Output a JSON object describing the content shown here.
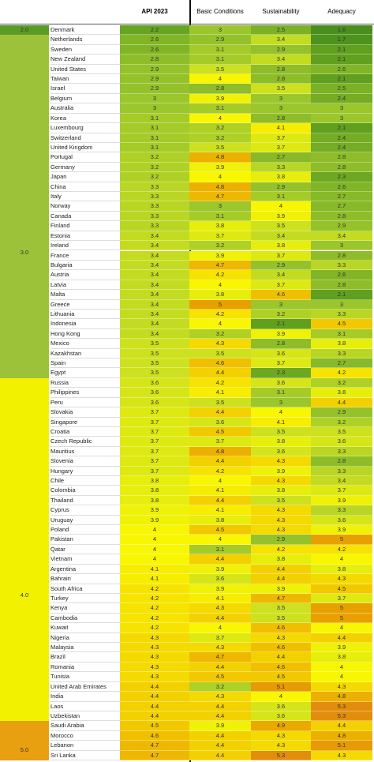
{
  "table": {
    "header": [
      "API 2023",
      "Basic Conditions",
      "Sustainability",
      "Adequacy"
    ],
    "bands": [
      "2.0",
      "3.0",
      "4.0",
      "5.0"
    ],
    "rows": [
      [
        "Denmark",
        2.2,
        3.0,
        2.5,
        1.6
      ],
      [
        "Netherlands",
        2.6,
        2.9,
        3.4,
        1.7
      ],
      [
        "Sweden",
        2.6,
        3.1,
        2.9,
        2.1
      ],
      [
        "New Zealand",
        2.8,
        3.1,
        3.4,
        2.1
      ],
      [
        "United States",
        2.9,
        3.5,
        2.8,
        2.6
      ],
      [
        "Taiwan",
        2.9,
        4.0,
        2.8,
        2.1
      ],
      [
        "Israel",
        2.9,
        2.8,
        3.5,
        2.5
      ],
      [
        "Belgium",
        3.0,
        3.9,
        3.0,
        2.4
      ],
      [
        "Australia",
        3.0,
        3.1,
        3.0,
        3.0
      ],
      [
        "Korea",
        3.1,
        4.0,
        2.8,
        3.0
      ],
      [
        "Luxembourg",
        3.1,
        3.2,
        4.1,
        2.1
      ],
      [
        "Switzerland",
        3.1,
        3.2,
        3.7,
        2.4
      ],
      [
        "United Kingdom",
        3.1,
        3.5,
        3.7,
        2.4
      ],
      [
        "Portugal",
        3.2,
        4.8,
        2.7,
        2.8
      ],
      [
        "Germany",
        3.2,
        3.9,
        3.3,
        2.8
      ],
      [
        "Japan",
        3.2,
        4.0,
        3.8,
        2.3
      ],
      [
        "China",
        3.3,
        4.8,
        2.9,
        2.6
      ],
      [
        "Italy",
        3.3,
        4.7,
        3.1,
        2.7
      ],
      [
        "Norway",
        3.3,
        3.0,
        4.0,
        2.7
      ],
      [
        "Canada",
        3.3,
        3.1,
        3.9,
        2.8
      ],
      [
        "Finland",
        3.3,
        3.8,
        3.5,
        2.9
      ],
      [
        "Estonia",
        3.4,
        3.7,
        3.4,
        3.4
      ],
      [
        "Ireland",
        3.4,
        3.2,
        3.8,
        3.0
      ],
      [
        "France",
        3.4,
        3.9,
        3.7,
        2.8
      ],
      [
        "Bulgaria",
        3.4,
        4.7,
        2.9,
        3.3
      ],
      [
        "Austria",
        3.4,
        4.2,
        3.4,
        2.6
      ],
      [
        "Latvia",
        3.4,
        4.0,
        3.7,
        2.8
      ],
      [
        "Malta",
        3.4,
        3.8,
        4.6,
        2.1
      ],
      [
        "Greece",
        3.4,
        5.0,
        3.0,
        3.0
      ],
      [
        "Lithuania",
        3.4,
        4.2,
        3.2,
        3.3
      ],
      [
        "Indonesia",
        3.4,
        4.0,
        2.1,
        4.5
      ],
      [
        "Hong Kong",
        3.4,
        3.2,
        3.9,
        3.1
      ],
      [
        "Mexico",
        3.5,
        4.3,
        2.8,
        3.8
      ],
      [
        "Kazakhstan",
        3.5,
        3.5,
        3.6,
        3.3
      ],
      [
        "Spain",
        3.5,
        4.6,
        3.7,
        2.7
      ],
      [
        "Egypt",
        3.5,
        4.4,
        2.3,
        4.2
      ],
      [
        "Russia",
        3.6,
        4.2,
        3.6,
        3.2
      ],
      [
        "Philippines",
        3.6,
        4.1,
        3.1,
        3.8
      ],
      [
        "Peru",
        3.6,
        3.5,
        3.0,
        4.4
      ],
      [
        "Slovakia",
        3.7,
        4.4,
        4.0,
        2.9
      ],
      [
        "Singapore",
        3.7,
        3.6,
        4.1,
        3.2
      ],
      [
        "Croatia",
        3.7,
        4.5,
        3.5,
        3.5
      ],
      [
        "Czech Republic",
        3.7,
        3.7,
        3.8,
        3.6
      ],
      [
        "Mauritius",
        3.7,
        4.8,
        3.6,
        3.3
      ],
      [
        "Slovenia",
        3.7,
        4.4,
        4.3,
        2.8
      ],
      [
        "Hungary",
        3.7,
        4.2,
        3.9,
        3.3
      ],
      [
        "Chile",
        3.8,
        4.0,
        4.3,
        3.4
      ],
      [
        "Colombia",
        3.8,
        4.1,
        3.8,
        3.7
      ],
      [
        "Thailand",
        3.8,
        4.4,
        3.5,
        3.9
      ],
      [
        "Cyprus",
        3.9,
        4.1,
        4.3,
        3.3
      ],
      [
        "Uruguay",
        3.9,
        3.8,
        4.3,
        3.6
      ],
      [
        "Poland",
        4.0,
        4.5,
        4.3,
        3.9
      ],
      [
        "Pakistan",
        4.0,
        4.0,
        2.9,
        5.0
      ],
      [
        "Qatar",
        4.0,
        3.1,
        4.2,
        4.2
      ],
      [
        "Vietnam",
        4.0,
        4.4,
        3.8,
        4.0
      ],
      [
        "Argentina",
        4.1,
        3.9,
        4.4,
        3.8
      ],
      [
        "Bahrain",
        4.1,
        3.6,
        4.4,
        4.3
      ],
      [
        "South Africa",
        4.2,
        3.9,
        3.9,
        4.5
      ],
      [
        "Turkey",
        4.2,
        4.1,
        4.7,
        3.7
      ],
      [
        "Kenya",
        4.2,
        4.3,
        3.5,
        5.0
      ],
      [
        "Cambodia",
        4.2,
        4.4,
        3.5,
        5.0
      ],
      [
        "Kuwait",
        4.2,
        4.0,
        4.6,
        4.0
      ],
      [
        "Nigeria",
        4.3,
        3.7,
        4.3,
        4.4
      ],
      [
        "Malaysia",
        4.3,
        4.3,
        4.6,
        3.9
      ],
      [
        "Brazil",
        4.3,
        4.7,
        4.4,
        3.8
      ],
      [
        "Romania",
        4.3,
        4.4,
        4.6,
        4.0
      ],
      [
        "Tunisia",
        4.3,
        4.5,
        4.5,
        4.0
      ],
      [
        "United Arab Emirates",
        4.4,
        3.2,
        5.1,
        4.3
      ],
      [
        "India",
        4.4,
        4.3,
        4.0,
        4.8
      ],
      [
        "Laos",
        4.4,
        4.4,
        3.6,
        5.3
      ],
      [
        "Uzbekistan",
        4.4,
        4.4,
        3.6,
        5.3
      ],
      [
        "Saudi Arabia",
        4.5,
        3.9,
        4.9,
        4.4
      ],
      [
        "Morocco",
        4.6,
        4.4,
        4.3,
        4.8
      ],
      [
        "Lebanon",
        4.7,
        4.4,
        4.3,
        5.1
      ],
      [
        "Sri Lanka",
        4.7,
        4.4,
        5.3,
        4.3
      ]
    ]
  }
}
